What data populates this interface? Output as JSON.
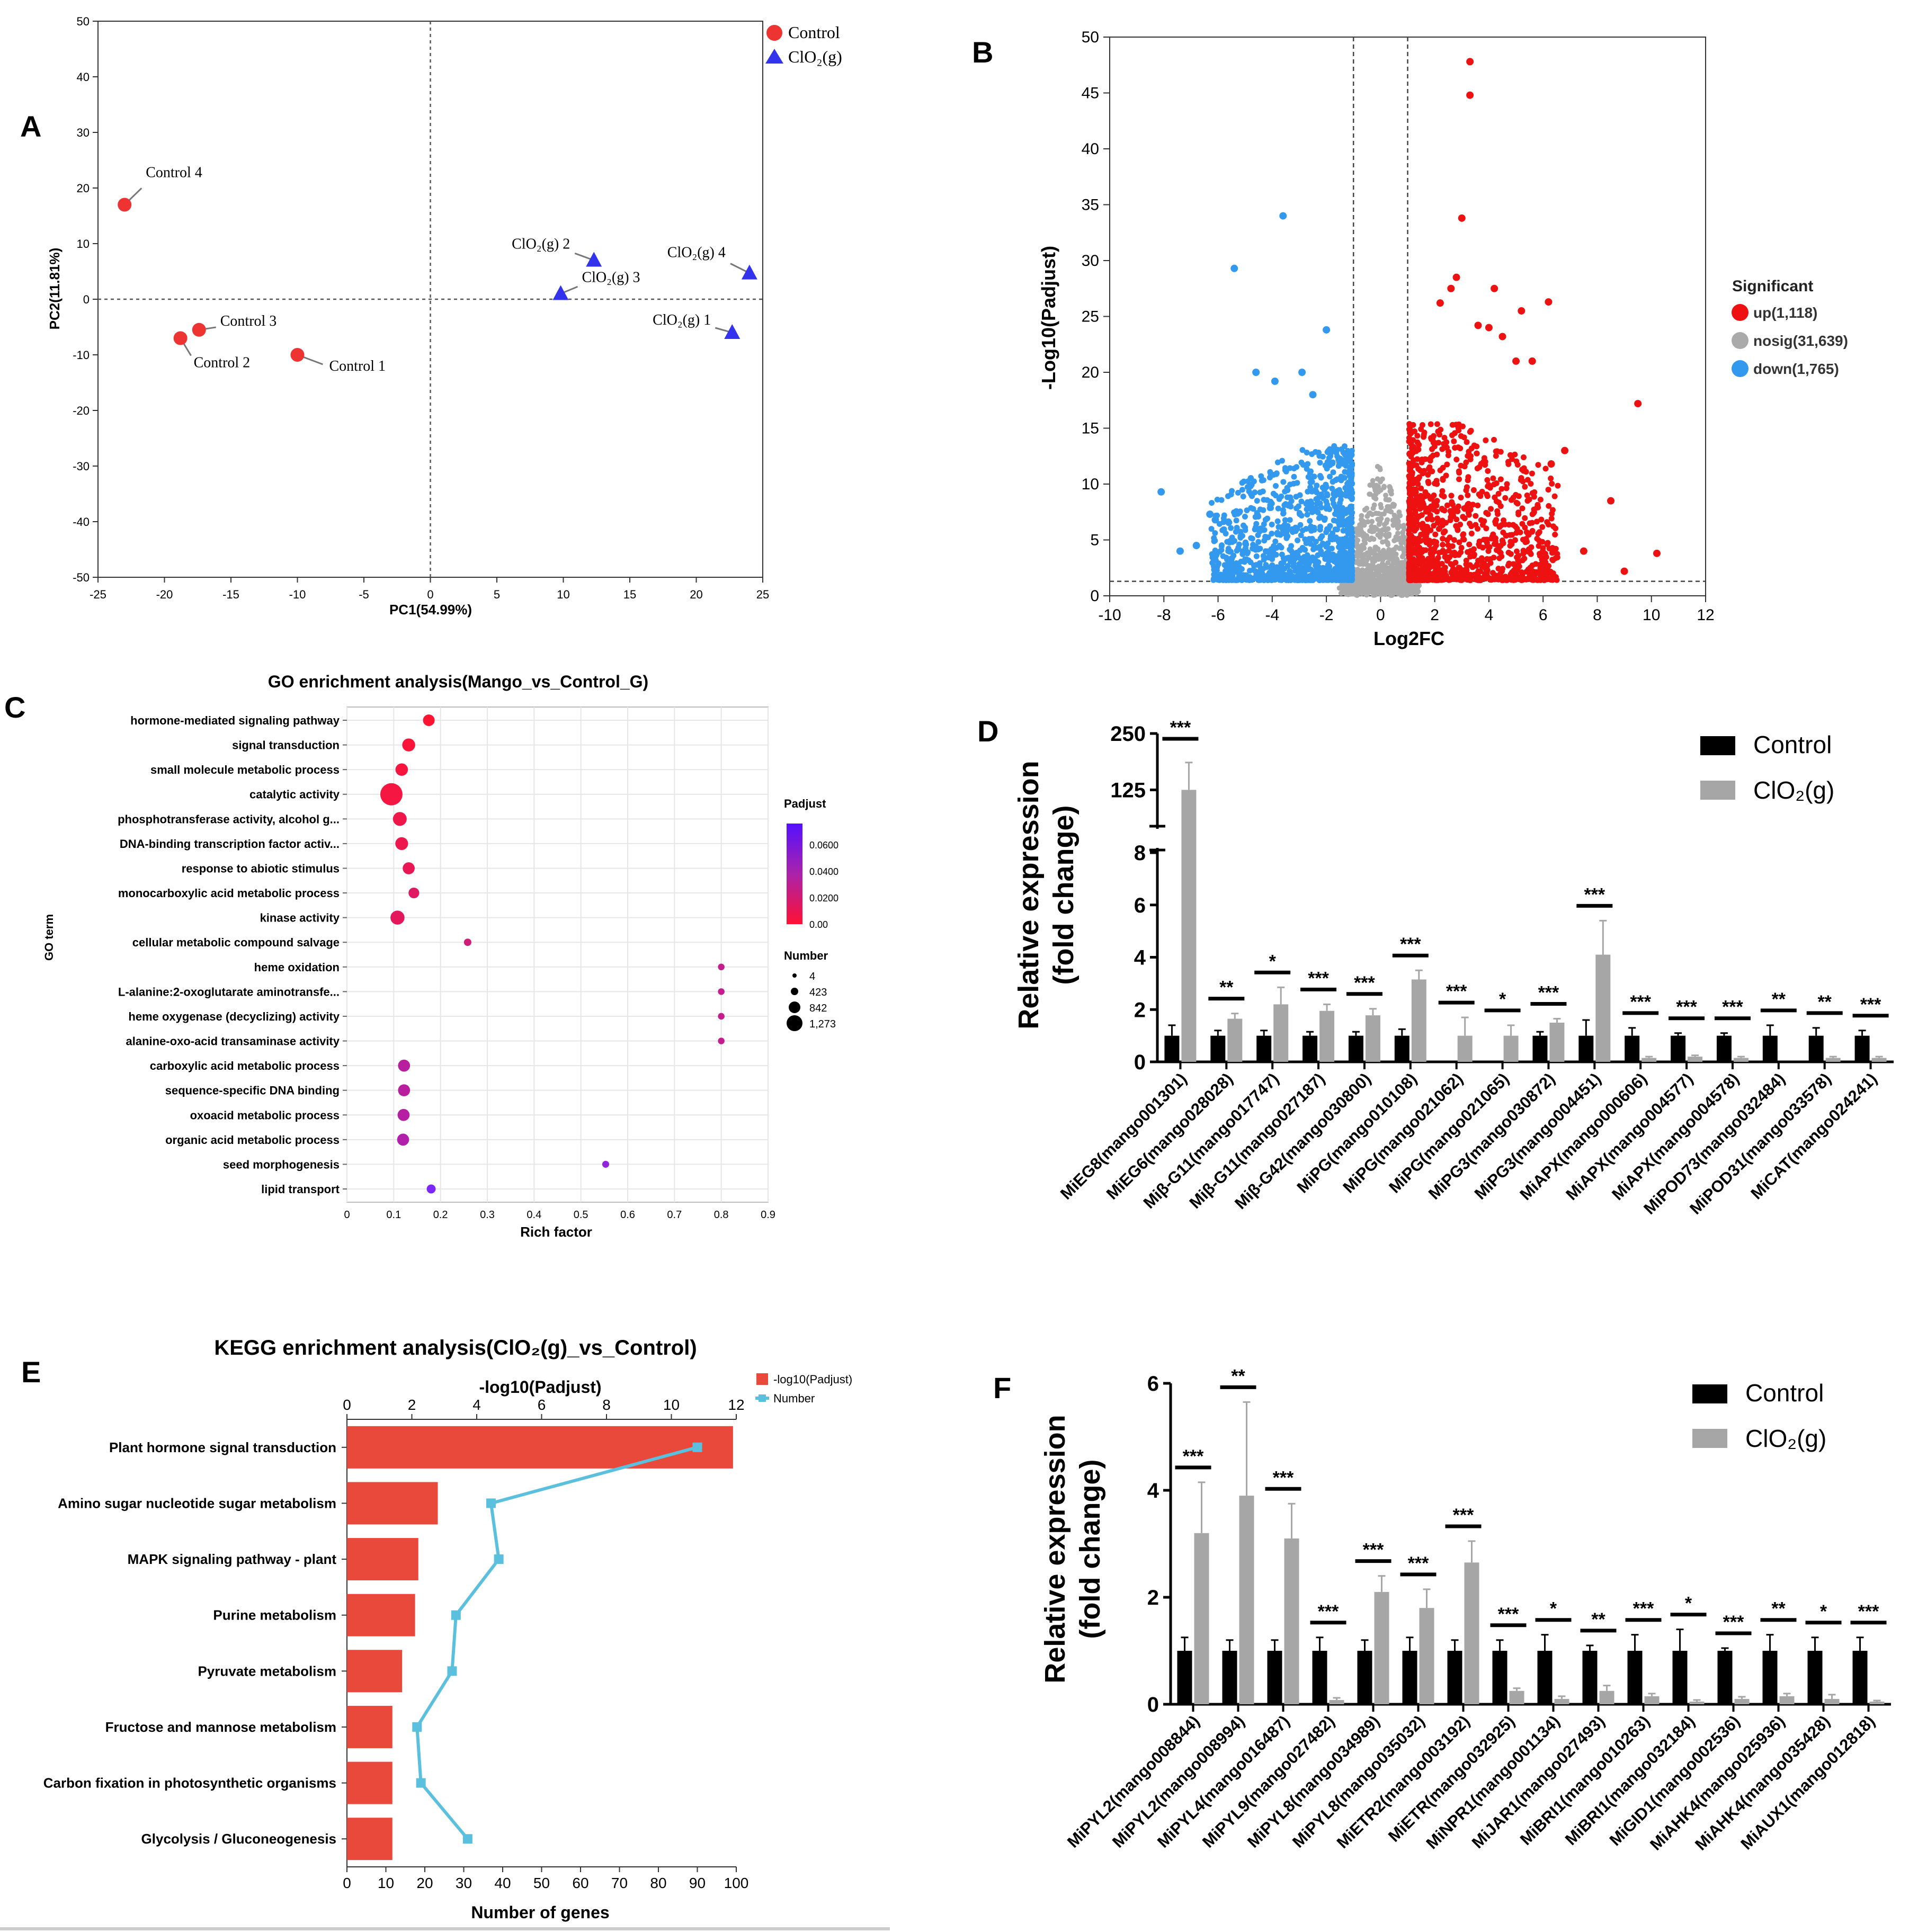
{
  "chart_data": [
    {
      "panel": "A",
      "type": "scatter",
      "title": "",
      "xlabel": "PC1(54.99%)",
      "ylabel": "PC2(11.81%)",
      "xlim": [
        -25,
        25
      ],
      "ylim": [
        -50,
        50
      ],
      "xticks": [
        -25,
        -20,
        -15,
        -10,
        -5,
        0,
        5,
        10,
        15,
        20,
        25
      ],
      "yticks": [
        50,
        40,
        30,
        20,
        10,
        0,
        -10,
        -20,
        -30,
        -40,
        -50
      ],
      "legend": [
        "Control",
        "ClO₂(g)"
      ],
      "colors": {
        "Control": "#ee3333",
        "ClO2": "#3333ee"
      },
      "series": [
        {
          "name": "Control",
          "points": [
            {
              "label": "Control 1",
              "x": -10,
              "y": -10
            },
            {
              "label": "Control 2",
              "x": -18.8,
              "y": -7
            },
            {
              "label": "Control 3",
              "x": -17.4,
              "y": -5.5
            },
            {
              "label": "Control 4",
              "x": -23,
              "y": 17
            }
          ]
        },
        {
          "name": "ClO₂(g)",
          "points": [
            {
              "label": "ClO₂(g) 1",
              "x": 22.7,
              "y": -6
            },
            {
              "label": "ClO₂(g) 2",
              "x": 12.3,
              "y": 7
            },
            {
              "label": "ClO₂(g) 3",
              "x": 9.8,
              "y": 1
            },
            {
              "label": "ClO₂(g) 4",
              "x": 24,
              "y": 4.7
            }
          ]
        }
      ]
    },
    {
      "panel": "B",
      "type": "scatter",
      "title": "",
      "xlabel": "Log2FC",
      "ylabel": "-Log10(Padjust)",
      "xlim": [
        -10,
        12
      ],
      "ylim": [
        0,
        50
      ],
      "xticks": [
        -10,
        -8,
        -6,
        -4,
        -2,
        0,
        2,
        4,
        6,
        8,
        10,
        12
      ],
      "yticks": [
        0,
        5,
        10,
        15,
        20,
        25,
        30,
        35,
        40,
        45,
        50
      ],
      "thresholds": {
        "x": [
          -1,
          1
        ],
        "y": 1.3
      },
      "legend_title": "Significant",
      "legend": [
        "up(1,118)",
        "nosig(31,639)",
        "down(1,765)"
      ],
      "colors": {
        "up": "#ee1111",
        "nosig": "#aaaaaa",
        "down": "#3399ee"
      },
      "highlights_up": [
        [
          3.3,
          47.8
        ],
        [
          3.3,
          44.8
        ],
        [
          3.0,
          33.8
        ],
        [
          2.8,
          28.5
        ],
        [
          2.6,
          27.5
        ],
        [
          2.2,
          26.2
        ],
        [
          4.2,
          27.5
        ],
        [
          5.2,
          25.5
        ],
        [
          6.2,
          26.3
        ],
        [
          4.0,
          24.0
        ],
        [
          3.6,
          24.2
        ],
        [
          4.5,
          23.2
        ],
        [
          5.0,
          21.0
        ],
        [
          5.6,
          21.0
        ],
        [
          9.5,
          17.2
        ],
        [
          6.8,
          13.0
        ],
        [
          6.3,
          11.8
        ],
        [
          8.5,
          8.5
        ],
        [
          10.2,
          3.8
        ],
        [
          9.0,
          2.2
        ],
        [
          7.5,
          4.0
        ]
      ],
      "highlights_down": [
        [
          -3.6,
          34.0
        ],
        [
          -5.4,
          29.3
        ],
        [
          -2.0,
          23.8
        ],
        [
          -4.6,
          20.0
        ],
        [
          -2.9,
          20.0
        ],
        [
          -3.9,
          19.2
        ],
        [
          -2.5,
          18.0
        ],
        [
          -8.1,
          9.3
        ],
        [
          -6.3,
          7.3
        ],
        [
          -6.1,
          6.8
        ],
        [
          -6.8,
          4.5
        ],
        [
          -7.4,
          4.0
        ]
      ]
    },
    {
      "panel": "C",
      "type": "scatter",
      "title": "GO enrichment analysis(Mango_vs_Control_G)",
      "xlabel": "Rich factor",
      "ylabel": "GO term",
      "xlim": [
        0,
        0.9
      ],
      "xticks": [
        0,
        0.1,
        0.2,
        0.3,
        0.4,
        0.5,
        0.6,
        0.7,
        0.8,
        0.9
      ],
      "legend_color_title": "Padjust",
      "color_ticks": [
        "0.0600",
        "0.0400",
        "0.0200",
        "0.00"
      ],
      "legend_size_title": "Number",
      "size_ticks": [
        "4",
        "423",
        "842",
        "1,273"
      ],
      "terms": [
        {
          "term": "hormone-mediated signaling pathway",
          "x": 0.175,
          "size": 180,
          "padj": 0.0
        },
        {
          "term": "signal transduction",
          "x": 0.132,
          "size": 260,
          "padj": 0.002
        },
        {
          "term": "small molecule metabolic process",
          "x": 0.117,
          "size": 230,
          "padj": 0.004
        },
        {
          "term": "catalytic activity",
          "x": 0.095,
          "size": 1273,
          "padj": 0.005
        },
        {
          "term": "phosphotransferase activity, alcohol g...",
          "x": 0.113,
          "size": 320,
          "padj": 0.008
        },
        {
          "term": "DNA-binding transcription factor activ...",
          "x": 0.117,
          "size": 250,
          "padj": 0.009
        },
        {
          "term": "response to abiotic stimulus",
          "x": 0.132,
          "size": 200,
          "padj": 0.011
        },
        {
          "term": "monocarboxylic acid metabolic process",
          "x": 0.143,
          "size": 130,
          "padj": 0.016
        },
        {
          "term": "kinase activity",
          "x": 0.108,
          "size": 340,
          "padj": 0.014
        },
        {
          "term": "cellular metabolic compound salvage",
          "x": 0.258,
          "size": 20,
          "padj": 0.024
        },
        {
          "term": "heme oxidation",
          "x": 0.8,
          "size": 8,
          "padj": 0.03
        },
        {
          "term": "L-alanine:2-oxoglutarate aminotransfe...",
          "x": 0.8,
          "size": 8,
          "padj": 0.03
        },
        {
          "term": "heme oxygenase (decyclizing) activity",
          "x": 0.8,
          "size": 8,
          "padj": 0.03
        },
        {
          "term": "alanine-oxo-acid transaminase activity",
          "x": 0.8,
          "size": 8,
          "padj": 0.03
        },
        {
          "term": "carboxylic acid metabolic process",
          "x": 0.122,
          "size": 200,
          "padj": 0.036
        },
        {
          "term": "sequence-specific DNA binding",
          "x": 0.122,
          "size": 200,
          "padj": 0.036
        },
        {
          "term": "oxoacid metabolic process",
          "x": 0.121,
          "size": 200,
          "padj": 0.037
        },
        {
          "term": "organic acid metabolic process",
          "x": 0.12,
          "size": 200,
          "padj": 0.04
        },
        {
          "term": "seed morphogenesis",
          "x": 0.553,
          "size": 12,
          "padj": 0.056
        },
        {
          "term": "lipid transport",
          "x": 0.18,
          "size": 60,
          "padj": 0.066
        }
      ]
    },
    {
      "panel": "D",
      "type": "bar",
      "xlabel": "",
      "ylabel": "Relative expression",
      "ylabel2": "(fold change)",
      "y_lower_ticks": [
        0,
        2,
        4,
        6,
        8
      ],
      "y_upper_ticks": [
        "125",
        "250"
      ],
      "legend": [
        "Control",
        "ClO₂(g)"
      ],
      "colors": {
        "Control": "#000000",
        "ClO2": "#a6a6a6"
      },
      "categories": [
        "MiEG8(mango001301)",
        "MiEG6(mango028028)",
        "Miβ-G11(mango017747)",
        "Miβ-G11(mango027187)",
        "Miβ-G42(mango030800)",
        "MiPG(mango010108)",
        "MiPG(mango021062)",
        "MiPG(mango021065)",
        "MiPG3(mango030872)",
        "MiPG3(mango004451)",
        "MiAPX(mango000606)",
        "MiAPX(mango004577)",
        "MiAPX(mango004578)",
        "MiPOD73(mango032484)",
        "MiPOD31(mango033578)",
        "MiCAT(mango024241)"
      ],
      "series": [
        {
          "name": "Control",
          "values": [
            1,
            1,
            1,
            1,
            1,
            1,
            0,
            0,
            1,
            1,
            1,
            1,
            1,
            1,
            1,
            1
          ],
          "errors": [
            0.4,
            0.2,
            0.2,
            0.15,
            0.15,
            0.25,
            0,
            0,
            0.15,
            0.6,
            0.3,
            0.1,
            0.1,
            0.4,
            0.3,
            0.2
          ]
        },
        {
          "name": "ClO₂(g)",
          "values": [
            125,
            1.65,
            2.2,
            1.95,
            1.78,
            3.15,
            1.0,
            1.0,
            1.5,
            4.1,
            0.15,
            0.2,
            0.15,
            0.0,
            0.15,
            0.15
          ],
          "errors": [
            50,
            0.2,
            0.65,
            0.25,
            0.25,
            0.35,
            0.7,
            0.4,
            0.15,
            1.3,
            0.05,
            0.05,
            0.05,
            0.0,
            0.05,
            0.05
          ]
        }
      ],
      "significance": [
        "***",
        "**",
        "*",
        "***",
        "***",
        "***",
        "***",
        "*",
        "***",
        "***",
        "***",
        "***",
        "***",
        "**",
        "**",
        "***"
      ]
    },
    {
      "panel": "E",
      "type": "bar",
      "title": "KEGG enrichment analysis(ClO₂(g)_vs_Control)",
      "xlabel": "Number of genes",
      "x2label": "-log10(Padjust)",
      "xlim": [
        0,
        100
      ],
      "x2lim": [
        0,
        12
      ],
      "xticks": [
        0,
        10,
        20,
        30,
        40,
        50,
        60,
        70,
        80,
        90,
        100
      ],
      "x2ticks": [
        0,
        2,
        4,
        6,
        8,
        10,
        12
      ],
      "legend": [
        "-log10(Padjust)",
        "Number"
      ],
      "colors": {
        "bar": "#e8493a",
        "line": "#5bc0de"
      },
      "categories": [
        "Plant hormone signal transduction",
        "Amino sugar nucleotide sugar metabolism",
        "MAPK signaling pathway - plant",
        "Purine metabolism",
        "Pyruvate metabolism",
        "Fructose and mannose metabolism",
        "Carbon fixation in photosynthetic organisms",
        "Glycolysis / Gluconeogenesis"
      ],
      "series": [
        {
          "name": "-log10(Padjust)",
          "values": [
            11.9,
            2.8,
            2.2,
            2.1,
            1.7,
            1.4,
            1.4,
            1.4
          ]
        },
        {
          "name": "Number",
          "values": [
            90,
            37,
            39,
            28,
            27,
            18,
            19,
            31
          ]
        }
      ]
    },
    {
      "panel": "F",
      "type": "bar",
      "xlabel": "",
      "ylabel": "Relative expression",
      "ylabel2": "(fold change)",
      "ylim": [
        0,
        6
      ],
      "yticks": [
        0,
        2,
        4,
        6
      ],
      "legend": [
        "Control",
        "ClO₂(g)"
      ],
      "colors": {
        "Control": "#000000",
        "ClO2": "#a6a6a6"
      },
      "categories": [
        "MiPYL2(mango008844)",
        "MiPYL2(mango008994)",
        "MiPYL4(mango016487)",
        "MiPYL9(mango027482)",
        "MiPYL8(mango034989)",
        "MiPYL8(mango035032)",
        "MiETR2(mango003192)",
        "MiETR(mango032925)",
        "MiNPR1(mango001134)",
        "MiJAR1(mango027493)",
        "MiBRI1(mango010263)",
        "MiBRI1(mango032184)",
        "MiGID1(mango002536)",
        "MiAHK4(mango025936)",
        "MiAHK4(mango035428)",
        "MiAUX1(mango012818)"
      ],
      "series": [
        {
          "name": "Control",
          "values": [
            1,
            1,
            1,
            1,
            1,
            1,
            1,
            1,
            1,
            1,
            1,
            1,
            1,
            1,
            1,
            1
          ],
          "errors": [
            0.25,
            0.2,
            0.2,
            0.25,
            0.2,
            0.25,
            0.2,
            0.2,
            0.3,
            0.1,
            0.3,
            0.4,
            0.05,
            0.3,
            0.25,
            0.25
          ]
        },
        {
          "name": "ClO₂(g)",
          "values": [
            3.2,
            3.9,
            3.1,
            0.08,
            2.1,
            1.8,
            2.65,
            0.25,
            0.1,
            0.25,
            0.15,
            0.05,
            0.1,
            0.15,
            0.1,
            0.05
          ],
          "errors": [
            0.95,
            1.75,
            0.65,
            0.04,
            0.3,
            0.35,
            0.4,
            0.05,
            0.05,
            0.1,
            0.05,
            0.03,
            0.04,
            0.05,
            0.08,
            0.02
          ]
        }
      ],
      "significance": [
        "***",
        "**",
        "***",
        "***",
        "***",
        "***",
        "***",
        "***",
        "*",
        "**",
        "***",
        "*",
        "***",
        "**",
        "*",
        "***"
      ]
    }
  ],
  "panel_labels": [
    "A",
    "B",
    "C",
    "D",
    "E",
    "F"
  ]
}
